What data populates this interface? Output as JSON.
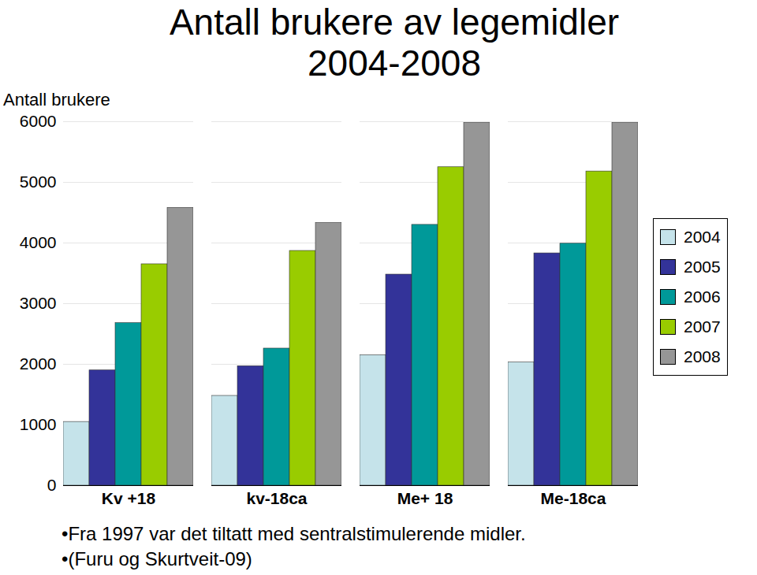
{
  "chart_data": {
    "type": "bar",
    "title": "Antall brukere av legemidler\n2004-2008",
    "y_label": "Antall brukere",
    "categories": [
      "Kv +18",
      "kv-18ca",
      "Me+ 18",
      "Me-18ca"
    ],
    "series": [
      {
        "name": "2004",
        "color": "#c5e3ea",
        "values": [
          1050,
          1480,
          2150,
          2030
        ]
      },
      {
        "name": "2005",
        "color": "#333399",
        "values": [
          1900,
          1970,
          3480,
          3830
        ]
      },
      {
        "name": "2006",
        "color": "#009999",
        "values": [
          2680,
          2260,
          4300,
          3990
        ]
      },
      {
        "name": "2007",
        "color": "#99cc00",
        "values": [
          3650,
          3870,
          5250,
          5180
        ]
      },
      {
        "name": "2008",
        "color": "#969696",
        "values": [
          4580,
          4330,
          5980,
          5980
        ]
      }
    ],
    "ylim": [
      0,
      6000
    ],
    "yticks": [
      0,
      1000,
      2000,
      3000,
      4000,
      5000,
      6000
    ],
    "grid": true,
    "legend": "right",
    "annotations": [
      "•Fra 1997 var det tiltatt med sentralstimulerende midler.",
      "•(Furu og Skurtveit-09)"
    ]
  }
}
